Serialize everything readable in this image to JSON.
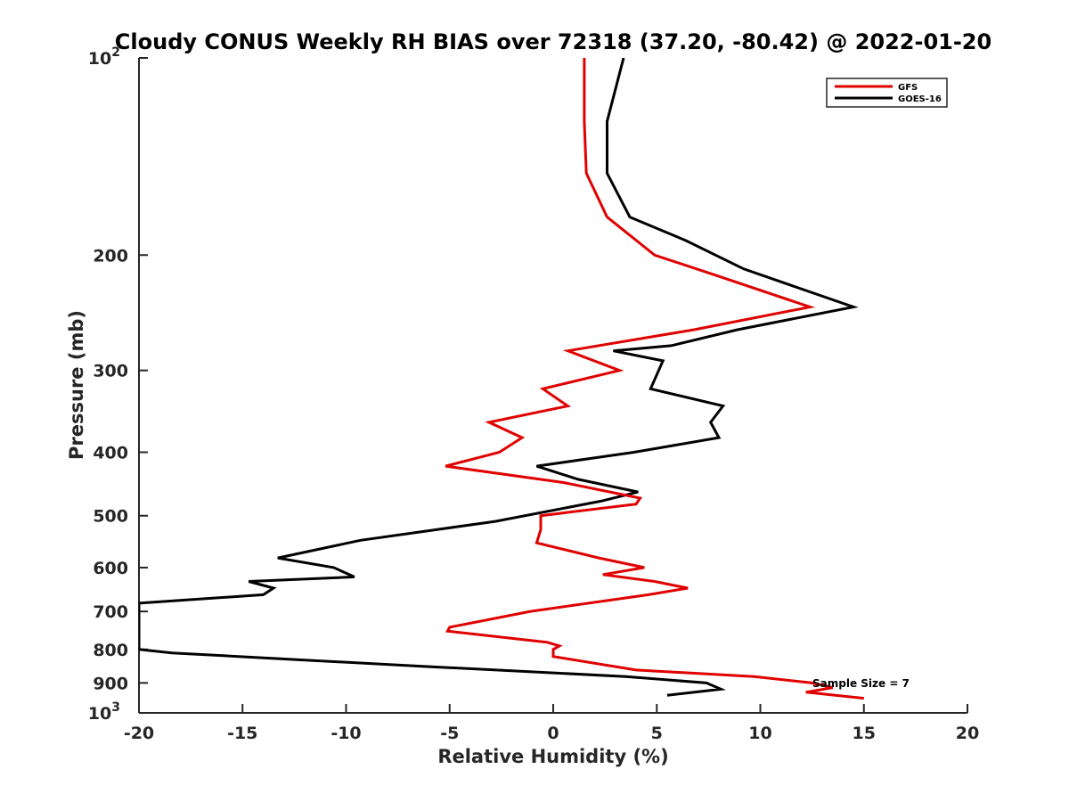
{
  "chart_data": {
    "type": "line",
    "title": "Cloudy CONUS Weekly RH BIAS over 72318 (37.20, -80.42) @ 2022-01-20",
    "xlabel": "Relative Humidity (%)",
    "ylabel": "Pressure (mb)",
    "xlim": [
      -20,
      20
    ],
    "ylim": [
      100,
      1000
    ],
    "yscale": "log",
    "yreversed": true,
    "xticks": [
      -20,
      -15,
      -10,
      -5,
      0,
      5,
      10,
      15,
      20
    ],
    "yticks": [
      {
        "value": 100,
        "base": "10",
        "exp": "2"
      },
      {
        "value": 200,
        "label": "200"
      },
      {
        "value": 300,
        "label": "300"
      },
      {
        "value": 400,
        "label": "400"
      },
      {
        "value": 500,
        "label": "500"
      },
      {
        "value": 600,
        "label": "600"
      },
      {
        "value": 700,
        "label": "700"
      },
      {
        "value": 800,
        "label": "800"
      },
      {
        "value": 900,
        "label": "900"
      },
      {
        "value": 1000,
        "base": "10",
        "exp": "3"
      }
    ],
    "legend_position": "top-right",
    "annotation": "Sample Size = 7",
    "series": [
      {
        "name": "GFS",
        "color": "#e00000",
        "points": [
          [
            1.5,
            100
          ],
          [
            1.5,
            125
          ],
          [
            1.6,
            150
          ],
          [
            2.6,
            175
          ],
          [
            4.9,
            200
          ],
          [
            7.9,
            215
          ],
          [
            12.4,
            240
          ],
          [
            6.8,
            260
          ],
          [
            0.7,
            280
          ],
          [
            3.2,
            300
          ],
          [
            -0.5,
            320
          ],
          [
            0.7,
            340
          ],
          [
            -3.1,
            360
          ],
          [
            -1.5,
            380
          ],
          [
            -2.6,
            400
          ],
          [
            -5.2,
            420
          ],
          [
            0.5,
            445
          ],
          [
            4.2,
            470
          ],
          [
            4.0,
            480
          ],
          [
            -0.6,
            500
          ],
          [
            -0.6,
            525
          ],
          [
            -0.8,
            550
          ],
          [
            2.2,
            580
          ],
          [
            4.4,
            600
          ],
          [
            2.4,
            615
          ],
          [
            4.9,
            630
          ],
          [
            6.5,
            645
          ],
          [
            4.6,
            660
          ],
          [
            -1.1,
            700
          ],
          [
            -5.0,
            740
          ],
          [
            -5.1,
            750
          ],
          [
            -0.3,
            780
          ],
          [
            0.3,
            790
          ],
          [
            0.0,
            800
          ],
          [
            0.0,
            820
          ],
          [
            4.0,
            860
          ],
          [
            9.7,
            880
          ],
          [
            12.5,
            900
          ],
          [
            13.5,
            915
          ],
          [
            12.2,
            930
          ],
          [
            15.0,
            950
          ]
        ]
      },
      {
        "name": "GOES-16",
        "color": "#000000",
        "points": [
          [
            3.4,
            100
          ],
          [
            2.6,
            125
          ],
          [
            2.6,
            150
          ],
          [
            3.7,
            175
          ],
          [
            6.4,
            190
          ],
          [
            9.2,
            210
          ],
          [
            14.5,
            240
          ],
          [
            8.9,
            260
          ],
          [
            5.7,
            275
          ],
          [
            2.9,
            280
          ],
          [
            5.3,
            290
          ],
          [
            4.7,
            320
          ],
          [
            8.2,
            340
          ],
          [
            7.6,
            360
          ],
          [
            8.0,
            380
          ],
          [
            3.9,
            400
          ],
          [
            -0.8,
            420
          ],
          [
            1.2,
            440
          ],
          [
            4.1,
            460
          ],
          [
            2.3,
            475
          ],
          [
            -2.8,
            510
          ],
          [
            -9.3,
            545
          ],
          [
            -13.3,
            580
          ],
          [
            -10.6,
            600
          ],
          [
            -9.6,
            620
          ],
          [
            -14.7,
            630
          ],
          [
            -13.5,
            645
          ],
          [
            -14.0,
            660
          ],
          [
            -20.0,
            680
          ],
          [
            -20.0,
            800
          ],
          [
            -18.4,
            810
          ],
          [
            -12.2,
            830
          ],
          [
            -6.0,
            850
          ],
          [
            3.5,
            880
          ],
          [
            7.4,
            900
          ],
          [
            8.1,
            920
          ],
          [
            5.5,
            940
          ]
        ]
      }
    ]
  }
}
